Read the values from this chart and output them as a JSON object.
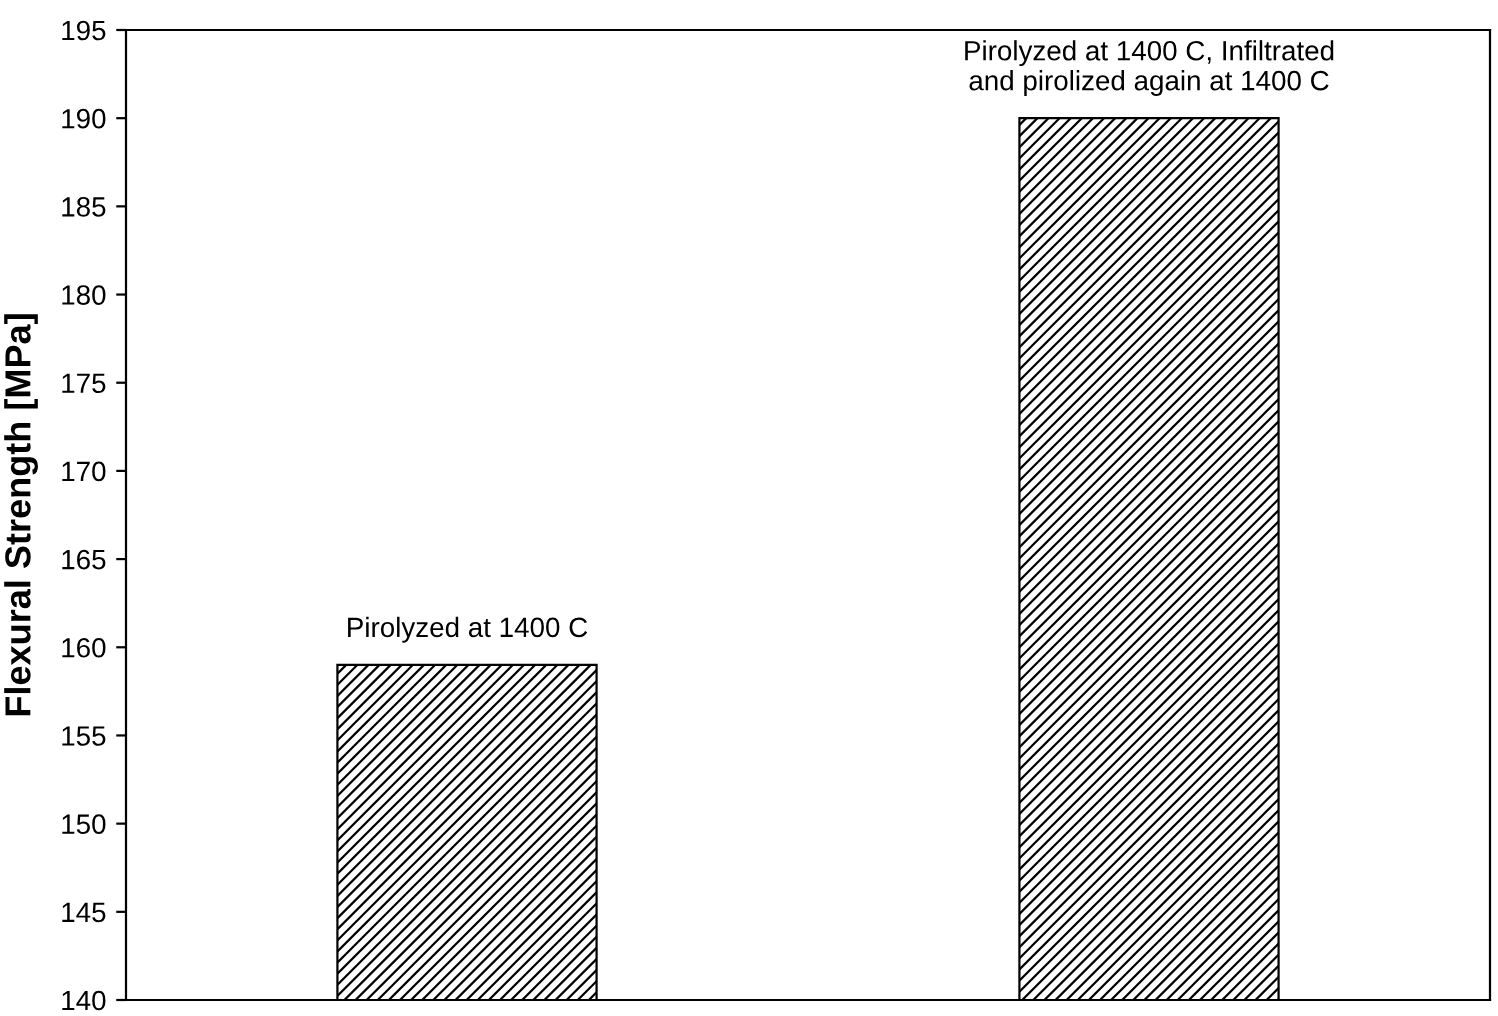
{
  "chart_data": {
    "type": "bar",
    "ylabel": "Flexural Strength [MPa]",
    "categories": [
      null,
      null
    ],
    "values": [
      159,
      190
    ],
    "color": "#000000",
    "ylim": [
      140,
      195
    ],
    "yticks": [
      140,
      145,
      150,
      155,
      160,
      165,
      170,
      175,
      180,
      185,
      190,
      195
    ],
    "grid": false,
    "annotations": [
      "Pirolyzed at 1400 C",
      "Pirolyzed at 1400 C, Infiltrated\nand pirolized again at 1400 C"
    ]
  }
}
